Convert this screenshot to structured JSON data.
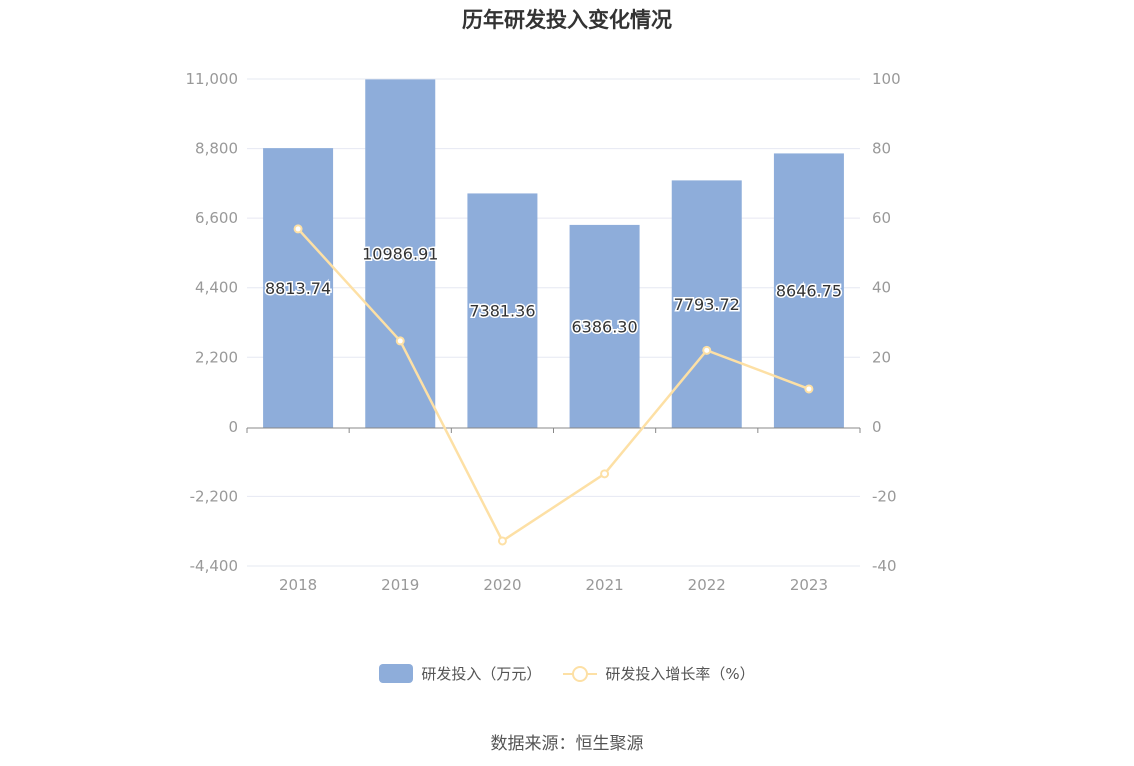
{
  "title": "历年研发投入变化情况",
  "source": "数据来源：恒生聚源",
  "colors": {
    "bar": "#8eadda",
    "line": "#fde0a5",
    "grid": "#e6e8f2",
    "axis": "#888888",
    "tick_label": "#999999"
  },
  "chart_data": {
    "type": "bar",
    "categories": [
      "2018",
      "2019",
      "2020",
      "2021",
      "2022",
      "2023"
    ],
    "series": [
      {
        "name": "研发投入（万元）",
        "type": "bar",
        "axis": "left",
        "values": [
          8813.74,
          10986.91,
          7381.36,
          6386.3,
          7793.72,
          8646.75
        ],
        "labels": [
          "8813.74",
          "10986.91",
          "7381.36",
          "6386.30",
          "7793.72",
          "8646.75"
        ]
      },
      {
        "name": "研发投入增长率（%）",
        "type": "line",
        "axis": "right",
        "values": [
          56.9,
          24.7,
          -32.8,
          -13.5,
          22.0,
          10.9
        ]
      }
    ],
    "y_left": {
      "min": -4400,
      "max": 11000,
      "ticks": [
        "-4,400",
        "-2,200",
        "0",
        "2,200",
        "4,400",
        "6,600",
        "8,800",
        "11,000"
      ]
    },
    "y_right": {
      "min": -40,
      "max": 100,
      "ticks": [
        "-40",
        "-20",
        "0",
        "20",
        "40",
        "60",
        "80",
        "100"
      ]
    },
    "grid": true,
    "legend": "bottom-center"
  }
}
